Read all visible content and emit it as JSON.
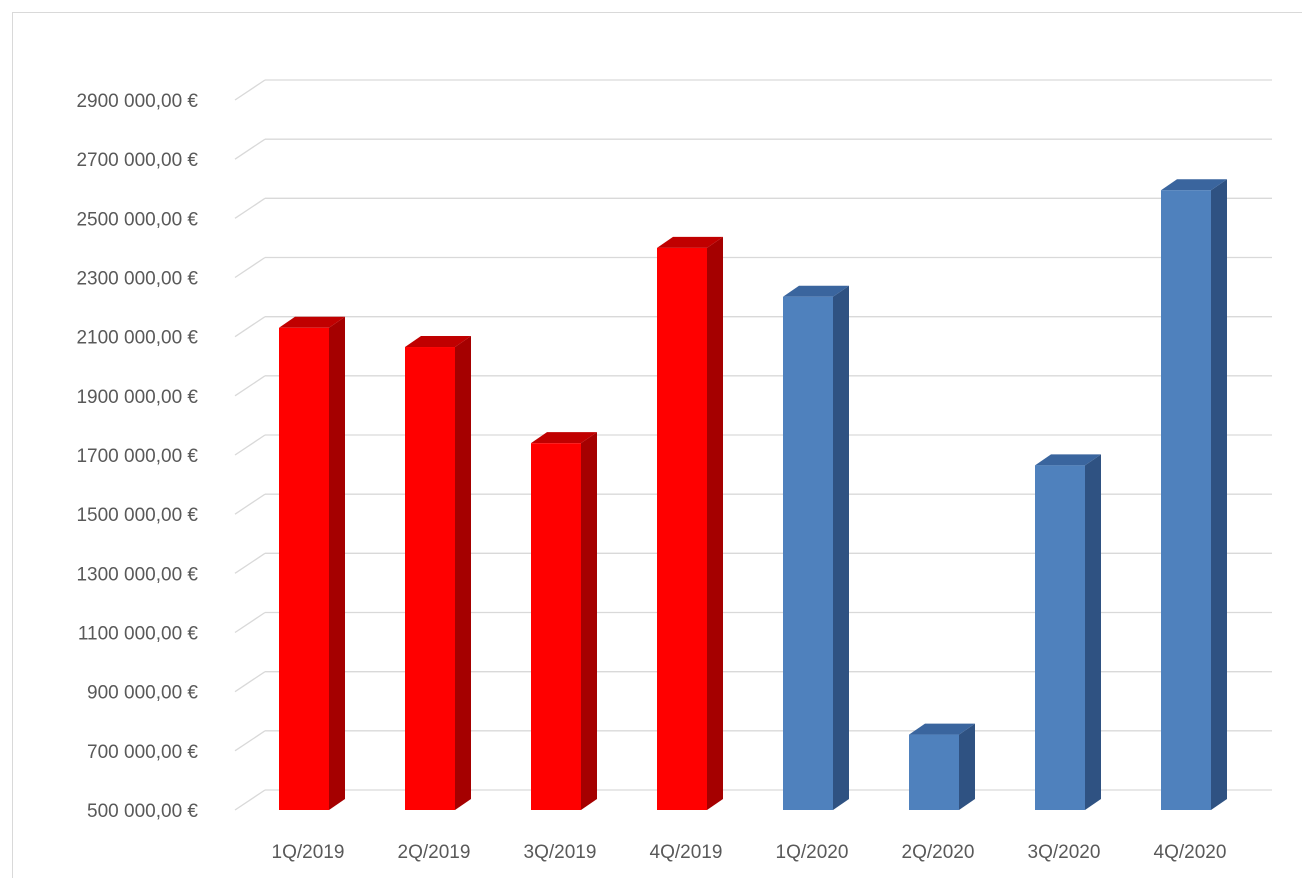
{
  "chart_data": {
    "type": "bar",
    "title": "",
    "xlabel": "",
    "ylabel": "",
    "categories": [
      "1Q/2019",
      "2Q/2019",
      "3Q/2019",
      "4Q/2019",
      "1Q/2020",
      "2Q/2020",
      "3Q/2020",
      "4Q/2020"
    ],
    "values": [
      2130000,
      2065000,
      1740000,
      2400000,
      2235000,
      755000,
      1665000,
      2595000
    ],
    "ylim": [
      500000,
      2900000
    ],
    "yticks": [
      500000,
      700000,
      900000,
      1100000,
      1300000,
      1500000,
      1700000,
      1900000,
      2100000,
      2300000,
      2500000,
      2700000,
      2900000
    ],
    "ytick_labels": [
      "500 000,00 €",
      "700 000,00 €",
      "900 000,00 €",
      "1100 000,00 €",
      "1300 000,00 €",
      "1500 000,00 €",
      "1700 000,00 €",
      "1900 000,00 €",
      "2100 000,00 €",
      "2300 000,00 €",
      "2500 000,00 €",
      "2700 000,00 €",
      "2900 000,00 €"
    ],
    "grid": true,
    "legend": "none",
    "bar_colors": {
      "2019": {
        "front": "#ff0000",
        "side": "#a50000",
        "top": "#c00000"
      },
      "2020": {
        "front": "#4f81bd",
        "side": "#2f5282",
        "top": "#3a659e"
      }
    },
    "gridline_color": "#d9d9d9"
  }
}
